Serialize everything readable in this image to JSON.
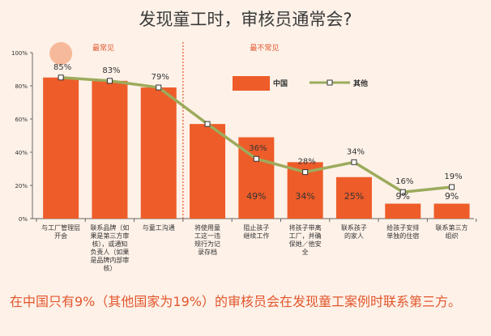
{
  "title": "发现童工时，审核员通常会?",
  "caption": "在中国只有9%（其他国家为19%）的审核员会在发现童工案例时联系第三方。",
  "colors": {
    "bar": "#ee5c29",
    "line": "#9cab5c",
    "section_label": "#e2562c",
    "divider": "#e2562c",
    "text": "#333333",
    "bar_label": "#333333"
  },
  "chart_data": {
    "type": "bar",
    "title": "发现童工时，审核员通常会?",
    "ylim": [
      0,
      100
    ],
    "yticks": [
      "0%",
      "20%",
      "40%",
      "60%",
      "80%",
      "100%"
    ],
    "sections": [
      "最常见",
      "最不常见"
    ],
    "categories": [
      "与工厂管理层开会",
      "联系品牌（如果是第三方审核），或通知负责人（如果是品牌内部审核）",
      "与童工沟通",
      "将使用童工这一违规行为记录存档",
      "阻止孩子继续工作",
      "将孩子带离工厂，并确保她／他安全",
      "联系孩子的家人",
      "给孩子安排单独的住宿",
      "联系第三方组织"
    ],
    "series": [
      {
        "name": "中国",
        "type": "bar",
        "values": [
          null,
          null,
          null,
          null,
          49,
          34,
          25,
          9,
          9
        ],
        "labels": [
          "",
          "",
          "",
          "",
          "49%",
          "34%",
          "25%",
          "9%",
          "9%"
        ]
      },
      {
        "name": "其他",
        "type": "line",
        "values": [
          85,
          83,
          79,
          57,
          36,
          28,
          34,
          16,
          19
        ],
        "labels": [
          "85%",
          "83%",
          "79%",
          "",
          "36%",
          "28%",
          "34%",
          "16%",
          "19%"
        ]
      }
    ],
    "legend": {
      "position": "top-center"
    }
  }
}
